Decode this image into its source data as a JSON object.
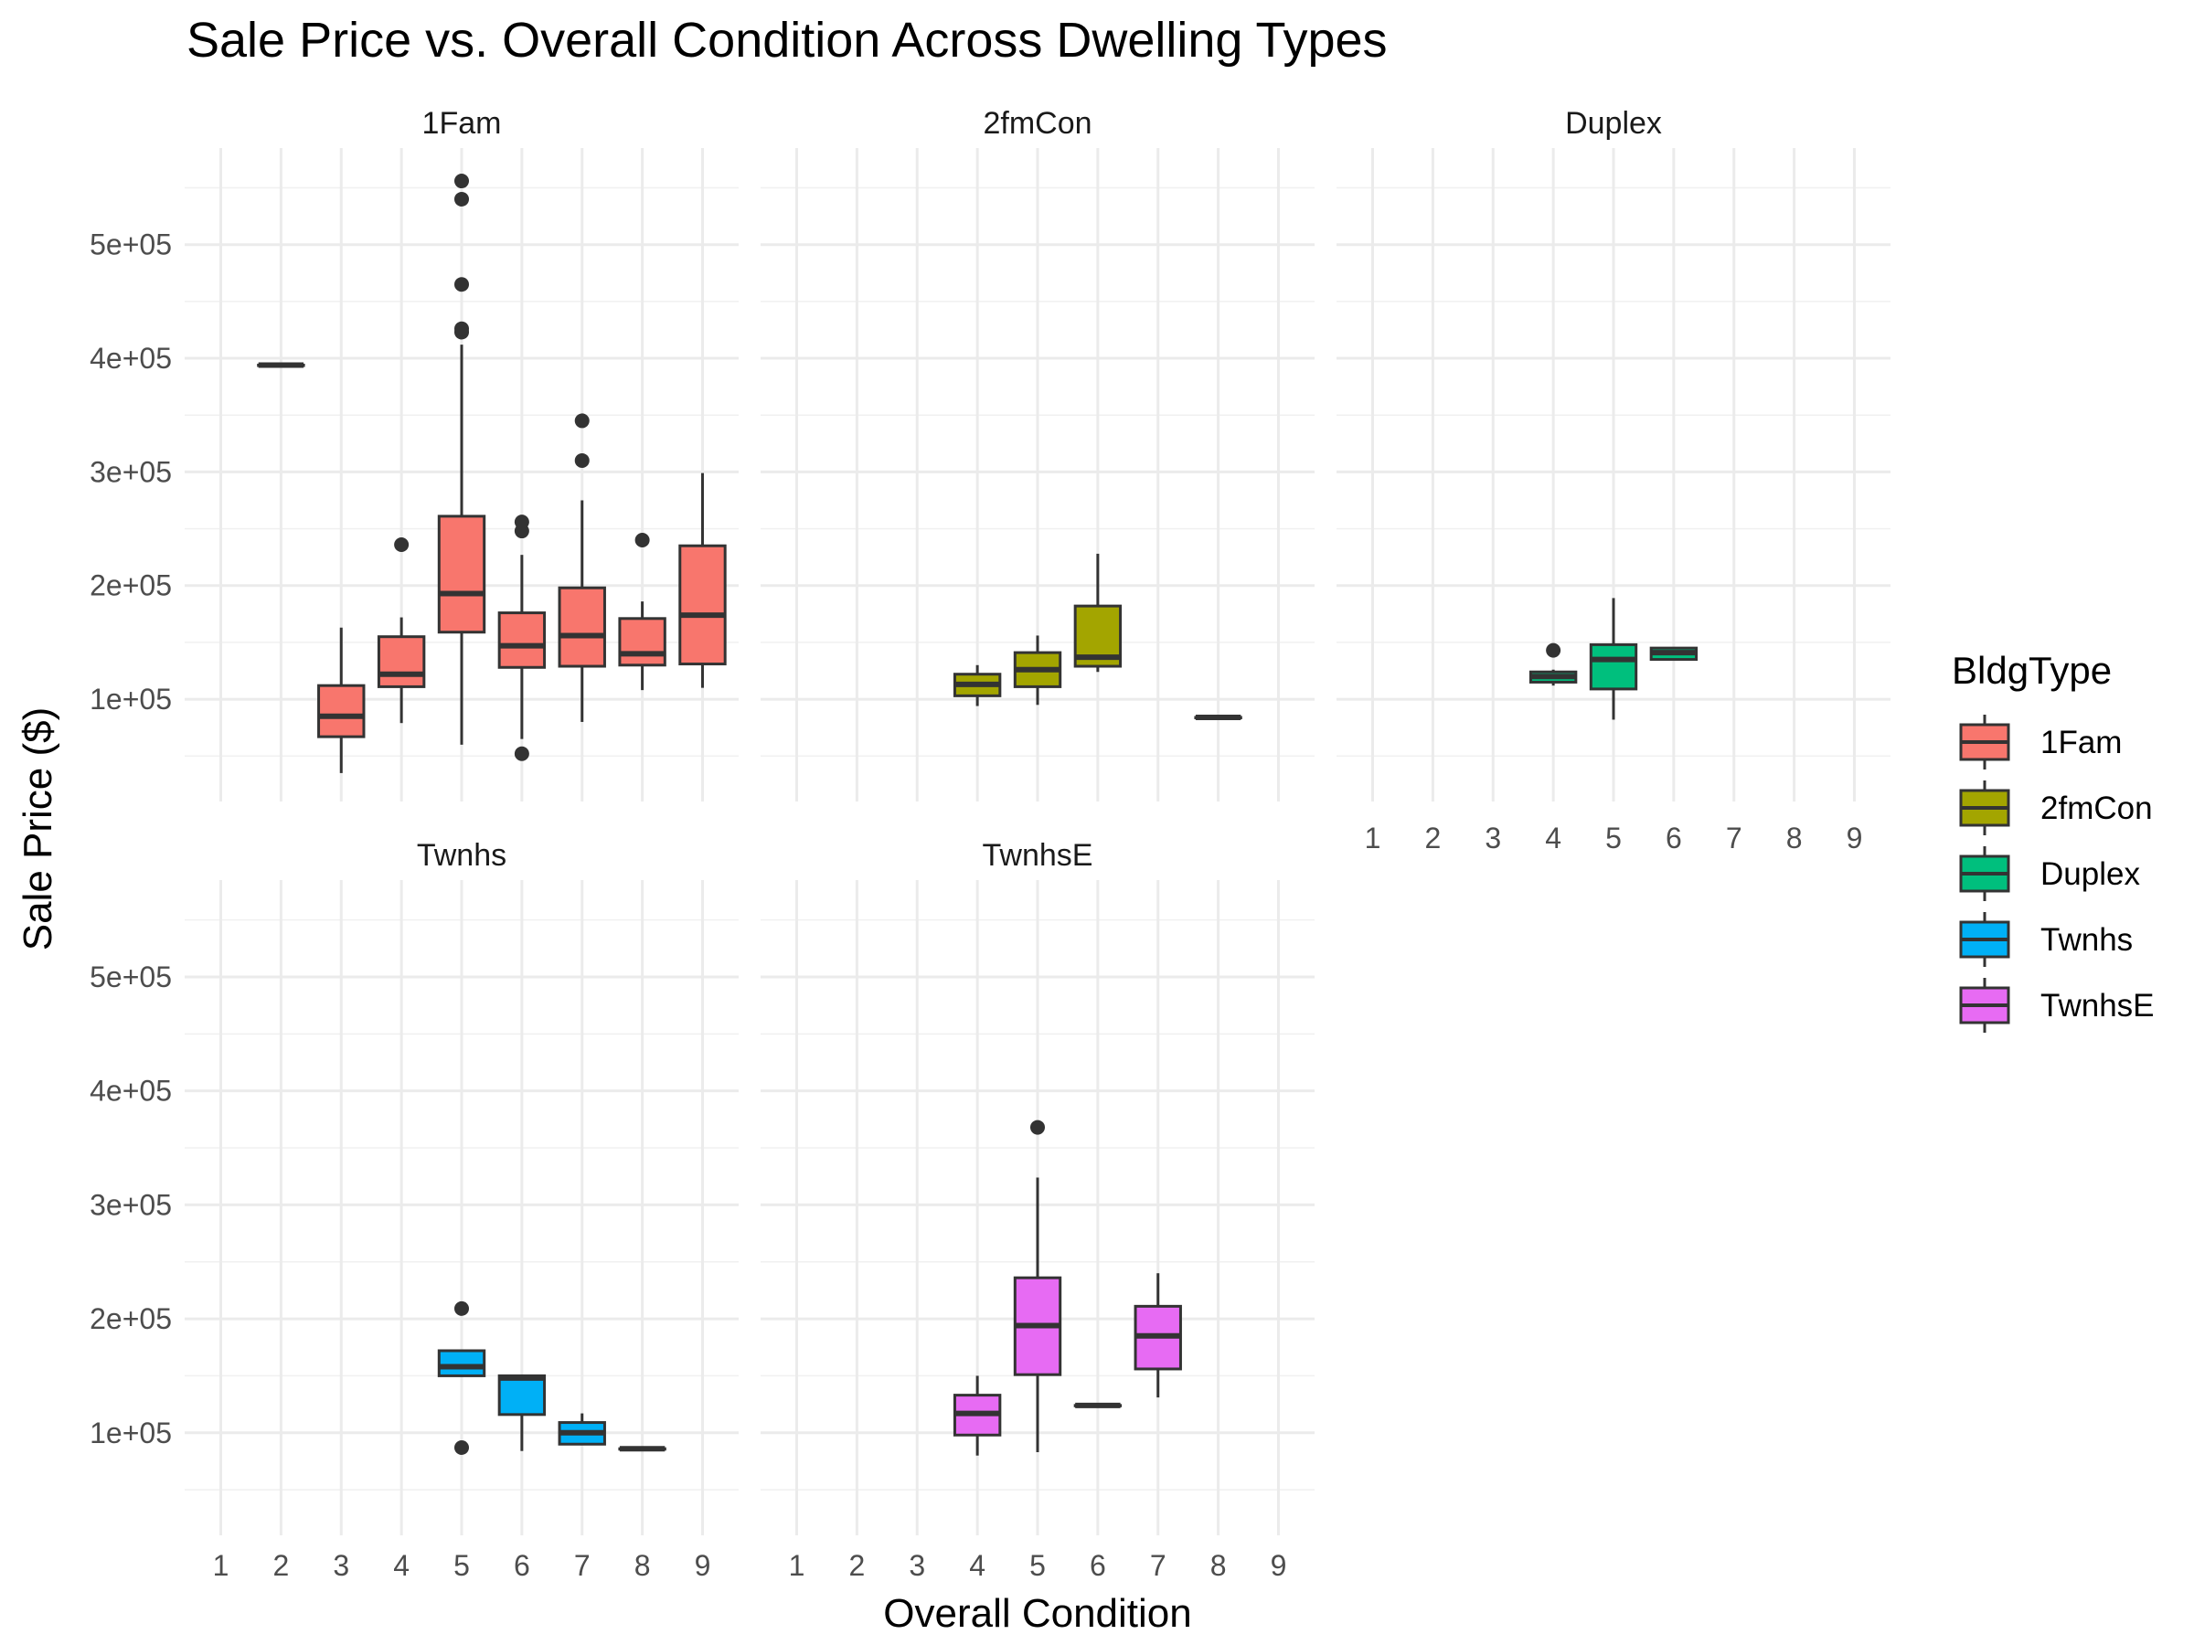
{
  "chart_data": {
    "type": "box",
    "title": "Sale Price vs. Overall Condition Across Dwelling Types",
    "xlabel": "Overall Condition",
    "ylabel": "Sale Price ($)",
    "x_ticks": [
      "1",
      "2",
      "3",
      "4",
      "5",
      "6",
      "7",
      "8",
      "9"
    ],
    "y_ticks": [
      {
        "value": 100000,
        "label": "1e+05"
      },
      {
        "value": 200000,
        "label": "2e+05"
      },
      {
        "value": 300000,
        "label": "3e+05"
      },
      {
        "value": 400000,
        "label": "4e+05"
      },
      {
        "value": 500000,
        "label": "5e+05"
      }
    ],
    "xlim": [
      0.4,
      9.6
    ],
    "ylim": [
      10000,
      585000
    ],
    "grid": true,
    "legend": {
      "title": "BldgType",
      "position": "right",
      "items": [
        {
          "name": "1Fam",
          "color": "#F8766D"
        },
        {
          "name": "2fmCon",
          "color": "#A3A500"
        },
        {
          "name": "Duplex",
          "color": "#00BF7D"
        },
        {
          "name": "Twnhs",
          "color": "#00B0F6"
        },
        {
          "name": "TwnhsE",
          "color": "#E76BF3"
        }
      ]
    },
    "facets": [
      {
        "name": "1Fam",
        "color": "#F8766D",
        "boxes": [
          {
            "x": 2,
            "min": 394000,
            "q1": 394000,
            "median": 394000,
            "q3": 394000,
            "max": 394000,
            "outliers": []
          },
          {
            "x": 3,
            "min": 35000,
            "q1": 67000,
            "median": 85000,
            "q3": 112000,
            "max": 163000,
            "outliers": []
          },
          {
            "x": 4,
            "min": 79000,
            "q1": 111000,
            "median": 122000,
            "q3": 155000,
            "max": 172000,
            "outliers": [
              236000
            ]
          },
          {
            "x": 5,
            "min": 60000,
            "q1": 159000,
            "median": 193000,
            "q3": 261000,
            "max": 412000,
            "outliers": [
              423000,
              426000,
              465000,
              540000,
              556000
            ]
          },
          {
            "x": 6,
            "min": 65000,
            "q1": 128000,
            "median": 147000,
            "q3": 176000,
            "max": 227000,
            "outliers": [
              52000,
              248000,
              256000
            ]
          },
          {
            "x": 7,
            "min": 80000,
            "q1": 129000,
            "median": 156000,
            "q3": 198000,
            "max": 275000,
            "outliers": [
              310000,
              345000
            ]
          },
          {
            "x": 8,
            "min": 108000,
            "q1": 130000,
            "median": 140000,
            "q3": 171000,
            "max": 186000,
            "outliers": [
              240000
            ]
          },
          {
            "x": 9,
            "min": 110000,
            "q1": 131000,
            "median": 174000,
            "q3": 235000,
            "max": 299000,
            "outliers": []
          }
        ]
      },
      {
        "name": "2fmCon",
        "color": "#A3A500",
        "boxes": [
          {
            "x": 4,
            "min": 94000,
            "q1": 103000,
            "median": 113000,
            "q3": 122000,
            "max": 130000,
            "outliers": []
          },
          {
            "x": 5,
            "min": 95000,
            "q1": 111000,
            "median": 126000,
            "q3": 141000,
            "max": 156000,
            "outliers": []
          },
          {
            "x": 6,
            "min": 124000,
            "q1": 129000,
            "median": 137000,
            "q3": 182000,
            "max": 228000,
            "outliers": []
          },
          {
            "x": 8,
            "min": 84000,
            "q1": 84000,
            "median": 84000,
            "q3": 84000,
            "max": 84000,
            "outliers": []
          }
        ]
      },
      {
        "name": "Duplex",
        "color": "#00BF7D",
        "boxes": [
          {
            "x": 4,
            "min": 112000,
            "q1": 115000,
            "median": 120000,
            "q3": 124000,
            "max": 126000,
            "outliers": [
              143000
            ]
          },
          {
            "x": 5,
            "min": 82000,
            "q1": 109000,
            "median": 135000,
            "q3": 148000,
            "max": 189000,
            "outliers": []
          },
          {
            "x": 6,
            "min": 134000,
            "q1": 135000,
            "median": 141000,
            "q3": 145000,
            "max": 145000,
            "outliers": []
          }
        ]
      },
      {
        "name": "Twnhs",
        "color": "#00B0F6",
        "boxes": [
          {
            "x": 5,
            "min": 150000,
            "q1": 150000,
            "median": 158000,
            "q3": 172000,
            "max": 172000,
            "outliers": [
              87000,
              209000
            ]
          },
          {
            "x": 6,
            "min": 84000,
            "q1": 116000,
            "median": 148000,
            "q3": 150000,
            "max": 150000,
            "outliers": []
          },
          {
            "x": 7,
            "min": 89000,
            "q1": 90000,
            "median": 100000,
            "q3": 109000,
            "max": 117000,
            "outliers": []
          },
          {
            "x": 8,
            "min": 86000,
            "q1": 86000,
            "median": 86000,
            "q3": 86000,
            "max": 86000,
            "outliers": []
          }
        ]
      },
      {
        "name": "TwnhsE",
        "color": "#E76BF3",
        "boxes": [
          {
            "x": 4,
            "min": 80000,
            "q1": 98000,
            "median": 117000,
            "q3": 133000,
            "max": 150000,
            "outliers": []
          },
          {
            "x": 5,
            "min": 83000,
            "q1": 151000,
            "median": 194000,
            "q3": 236000,
            "max": 324000,
            "outliers": [
              368000
            ]
          },
          {
            "x": 6,
            "min": 124000,
            "q1": 124000,
            "median": 124000,
            "q3": 124000,
            "max": 124000,
            "outliers": []
          },
          {
            "x": 7,
            "min": 131000,
            "q1": 156000,
            "median": 185000,
            "q3": 211000,
            "max": 240000,
            "outliers": []
          }
        ]
      }
    ]
  }
}
